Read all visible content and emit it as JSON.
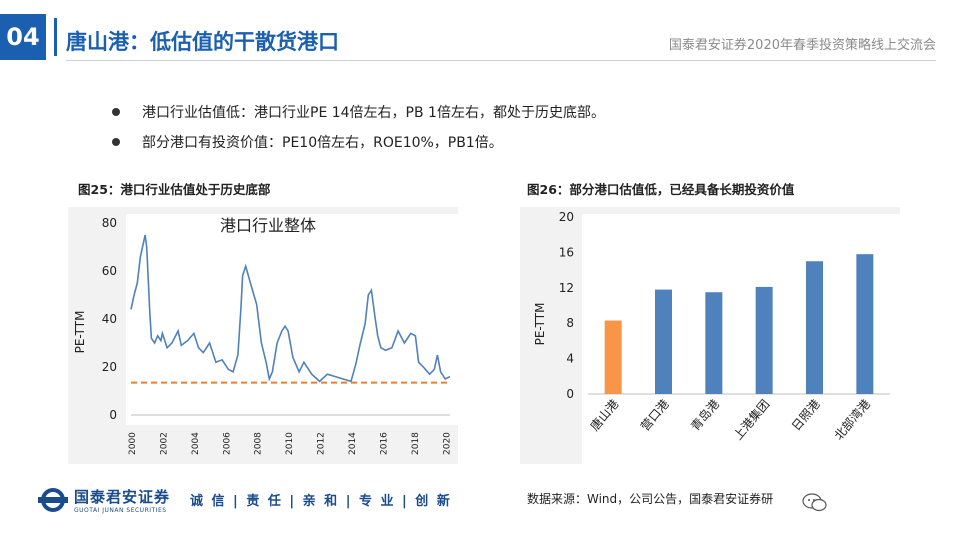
{
  "header": {
    "section_number": "04",
    "title": "唐山港：低估值的干散货港口",
    "right_text": "国泰君安证券2020年春季投资策略线上交流会"
  },
  "bullets": [
    "港口行业估值低：港口行业PE 14倍左右，PB 1倍左右，都处于历史底部。",
    "部分港口有投资价值：PE10倍左右，ROE10%，PB1倍。"
  ],
  "figure_left": {
    "caption": "图25：港口行业估值处于历史底部"
  },
  "figure_right": {
    "caption": "图26：部分港口估值低，已经具备长期投资价值"
  },
  "footer": {
    "logo_cn": "国泰君安证券",
    "logo_en": "GUOTAI JUNAN SECURITIES",
    "slogan": "诚 信 | 责 任 | 亲 和 | 专 业 | 创 新",
    "source": "数据来源：Wind，公司公告，国泰君安证券研"
  },
  "colors": {
    "brand": "#1a5fb0",
    "line": "#4f81bd",
    "highlight": "#f79646"
  },
  "chart_data": [
    {
      "type": "line",
      "title": "港口行业整体",
      "ylabel": "PE-TTM",
      "xlabel": "",
      "ylim": [
        0,
        80
      ],
      "yticks": [
        0,
        20,
        40,
        60,
        80
      ],
      "xticks": [
        "2000",
        "2002",
        "2004",
        "2006",
        "2008",
        "2010",
        "2012",
        "2014",
        "2016",
        "2018",
        "2020"
      ],
      "xlim": [
        2000,
        2020.3
      ],
      "reference_line": {
        "y": 13.5,
        "style": "dashed",
        "color": "#ed7d31"
      },
      "x": [
        2000.0,
        2000.2,
        2000.4,
        2000.6,
        2000.8,
        2000.9,
        2001.0,
        2001.1,
        2001.2,
        2001.3,
        2001.5,
        2001.7,
        2001.9,
        2002.0,
        2002.3,
        2002.6,
        2003.0,
        2003.2,
        2003.6,
        2004.0,
        2004.3,
        2004.6,
        2005.0,
        2005.4,
        2005.8,
        2006.2,
        2006.5,
        2006.8,
        2007.0,
        2007.1,
        2007.3,
        2007.6,
        2008.0,
        2008.3,
        2008.6,
        2008.8,
        2009.0,
        2009.3,
        2009.6,
        2009.8,
        2010.0,
        2010.3,
        2010.7,
        2011.0,
        2011.5,
        2012.0,
        2012.5,
        2013.0,
        2013.5,
        2014.0,
        2014.3,
        2014.6,
        2014.9,
        2015.1,
        2015.3,
        2015.5,
        2015.7,
        2015.9,
        2016.2,
        2016.6,
        2017.0,
        2017.4,
        2017.8,
        2018.1,
        2018.3,
        2018.6,
        2019.0,
        2019.3,
        2019.5,
        2019.7,
        2020.0,
        2020.3
      ],
      "y": [
        44,
        50,
        55,
        66,
        72,
        75,
        70,
        56,
        42,
        32,
        30,
        33,
        31,
        34,
        28,
        30,
        35,
        29,
        31,
        34,
        28,
        26,
        30,
        22,
        23,
        19,
        18,
        25,
        45,
        58,
        62,
        55,
        46,
        30,
        22,
        15,
        18,
        30,
        35,
        37,
        35,
        24,
        18,
        22,
        17,
        14,
        17,
        16,
        15,
        14,
        21,
        30,
        38,
        50,
        52,
        42,
        33,
        28,
        27,
        28,
        35,
        30,
        34,
        33,
        22,
        20,
        17,
        19,
        25,
        18,
        15,
        16
      ]
    },
    {
      "type": "bar",
      "title": "",
      "ylabel": "PE-TTM",
      "ylim": [
        0,
        20
      ],
      "yticks": [
        0,
        4,
        8,
        12,
        16,
        20
      ],
      "categories": [
        "唐山港",
        "营口港",
        "青岛港",
        "上港集团",
        "日照港",
        "北部湾港"
      ],
      "values": [
        8.3,
        11.8,
        11.5,
        12.1,
        15.0,
        15.8
      ],
      "bar_colors": [
        "#f79646",
        "#4f81bd",
        "#4f81bd",
        "#4f81bd",
        "#4f81bd",
        "#4f81bd"
      ]
    }
  ]
}
